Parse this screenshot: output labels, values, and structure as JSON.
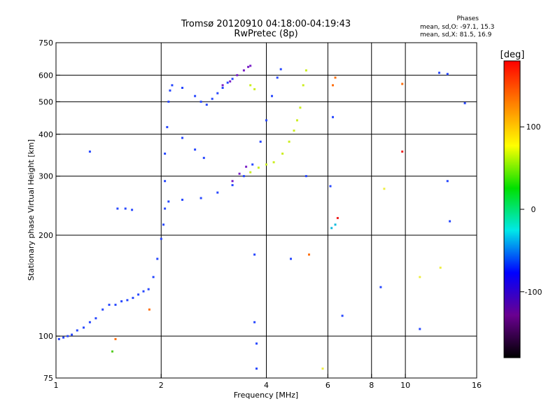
{
  "header": {
    "title": "Tromsø 20120910 04:18:00-04:19:43",
    "subtitle": "RwPretec (8p)"
  },
  "phase_box": {
    "label": "Phases",
    "line_o": "mean, sd,O: -97.1, 15.3",
    "line_x": "mean, sd,X: 81.5, 16.9"
  },
  "colorbar": {
    "unit": "[deg]",
    "ticks": [
      {
        "value": 100,
        "label": "100"
      },
      {
        "value": 0,
        "label": "0"
      },
      {
        "value": -100,
        "label": "-100"
      }
    ],
    "range": [
      -180,
      180
    ],
    "stops": [
      "#000000",
      "#6a0090",
      "#0000ff",
      "#00e8e8",
      "#00e000",
      "#ffff00",
      "#ff8000",
      "#ff0000"
    ]
  },
  "chart_data": {
    "type": "scatter",
    "xlabel": "Frequency [MHz]",
    "ylabel": "Stationary phase Virtual Height [km]",
    "x_scale": "log",
    "y_scale": "log",
    "xlim": [
      1,
      16
    ],
    "ylim": [
      75,
      750
    ],
    "x_ticks": [
      {
        "value": 1,
        "label": "1"
      },
      {
        "value": 2,
        "label": "2"
      },
      {
        "value": 4,
        "label": "4"
      },
      {
        "value": 6,
        "label": "6"
      },
      {
        "value": 8,
        "label": "8"
      },
      {
        "value": 10,
        "label": "10"
      },
      {
        "value": 16,
        "label": "16"
      }
    ],
    "x_gridlines": [
      2,
      4,
      6,
      8,
      10
    ],
    "y_ticks": [
      {
        "value": 75,
        "label": "75"
      },
      {
        "value": 100,
        "label": "100"
      },
      {
        "value": 200,
        "label": "200"
      },
      {
        "value": 300,
        "label": "300"
      },
      {
        "value": 400,
        "label": "400"
      },
      {
        "value": 500,
        "label": "500"
      },
      {
        "value": 600,
        "label": "600"
      },
      {
        "value": 750,
        "label": "750"
      }
    ],
    "y_gridlines": [
      100,
      200,
      300,
      400,
      500,
      600
    ],
    "grid": true,
    "series": [
      {
        "color": "#2848ff",
        "points": [
          [
            1.02,
            98
          ],
          [
            1.05,
            99
          ],
          [
            1.08,
            100
          ],
          [
            1.11,
            101
          ],
          [
            1.15,
            104
          ],
          [
            1.2,
            106
          ],
          [
            1.25,
            110
          ],
          [
            1.3,
            113
          ],
          [
            1.36,
            120
          ],
          [
            1.42,
            124
          ],
          [
            1.48,
            124
          ],
          [
            1.54,
            127
          ],
          [
            1.6,
            128
          ],
          [
            1.66,
            130
          ],
          [
            1.72,
            133
          ],
          [
            1.78,
            136
          ],
          [
            1.84,
            138
          ],
          [
            1.9,
            150
          ],
          [
            1.95,
            170
          ],
          [
            2.0,
            195
          ],
          [
            2.03,
            215
          ],
          [
            2.05,
            240
          ],
          [
            2.1,
            252
          ],
          [
            2.3,
            255
          ],
          [
            2.6,
            258
          ],
          [
            2.9,
            268
          ],
          [
            3.2,
            282
          ],
          [
            3.45,
            300
          ],
          [
            3.65,
            325
          ],
          [
            3.85,
            380
          ],
          [
            4.0,
            440
          ],
          [
            4.15,
            520
          ],
          [
            4.3,
            590
          ],
          [
            4.4,
            625
          ],
          [
            2.05,
            290
          ],
          [
            2.05,
            350
          ],
          [
            2.08,
            420
          ],
          [
            2.1,
            500
          ],
          [
            2.12,
            540
          ],
          [
            2.15,
            560
          ],
          [
            2.3,
            550
          ],
          [
            2.5,
            520
          ],
          [
            2.6,
            500
          ],
          [
            2.7,
            490
          ],
          [
            2.8,
            510
          ],
          [
            2.9,
            530
          ],
          [
            3.0,
            550
          ],
          [
            3.1,
            570
          ],
          [
            3.2,
            585
          ],
          [
            2.3,
            390
          ],
          [
            2.5,
            360
          ],
          [
            2.65,
            340
          ],
          [
            1.5,
            240
          ],
          [
            1.58,
            240
          ],
          [
            1.65,
            238
          ],
          [
            1.25,
            355
          ],
          [
            5.2,
            300
          ],
          [
            6.1,
            280
          ],
          [
            6.2,
            450
          ],
          [
            12.5,
            610
          ],
          [
            13.2,
            605
          ],
          [
            14.8,
            495
          ],
          [
            13.2,
            290
          ],
          [
            13.4,
            220
          ],
          [
            11.0,
            105
          ],
          [
            6.6,
            115
          ],
          [
            8.5,
            140
          ],
          [
            3.7,
            110
          ],
          [
            3.75,
            95
          ],
          [
            3.75,
            80
          ],
          [
            4.7,
            170
          ],
          [
            3.7,
            175
          ]
        ]
      },
      {
        "color": "#7a20c8",
        "points": [
          [
            3.0,
            560
          ],
          [
            3.15,
            575
          ],
          [
            3.3,
            600
          ],
          [
            3.45,
            620
          ],
          [
            3.55,
            635
          ],
          [
            3.6,
            640
          ],
          [
            3.2,
            290
          ],
          [
            3.35,
            305
          ],
          [
            3.5,
            320
          ]
        ]
      },
      {
        "color": "#ccee22",
        "points": [
          [
            3.6,
            308
          ],
          [
            3.8,
            318
          ],
          [
            4.0,
            325
          ],
          [
            4.2,
            330
          ],
          [
            4.45,
            350
          ],
          [
            4.65,
            380
          ],
          [
            4.8,
            410
          ],
          [
            4.9,
            440
          ],
          [
            5.0,
            480
          ],
          [
            5.1,
            560
          ],
          [
            5.2,
            620
          ],
          [
            3.6,
            560
          ],
          [
            3.7,
            545
          ]
        ]
      },
      {
        "color": "#ff7010",
        "points": [
          [
            1.48,
            98
          ],
          [
            1.85,
            120
          ],
          [
            6.2,
            560
          ],
          [
            6.3,
            590
          ],
          [
            9.8,
            565
          ],
          [
            5.3,
            175
          ]
        ]
      },
      {
        "color": "#11bbdd",
        "points": [
          [
            6.15,
            210
          ],
          [
            6.3,
            215
          ]
        ]
      },
      {
        "color": "#ee2222",
        "points": [
          [
            9.8,
            355
          ],
          [
            6.4,
            225
          ]
        ]
      },
      {
        "color": "#55cc22",
        "points": [
          [
            1.45,
            90
          ]
        ]
      },
      {
        "color": "#eeee44",
        "points": [
          [
            12.6,
            160
          ],
          [
            11.0,
            150
          ],
          [
            5.8,
            80
          ],
          [
            8.7,
            275
          ]
        ]
      }
    ]
  }
}
